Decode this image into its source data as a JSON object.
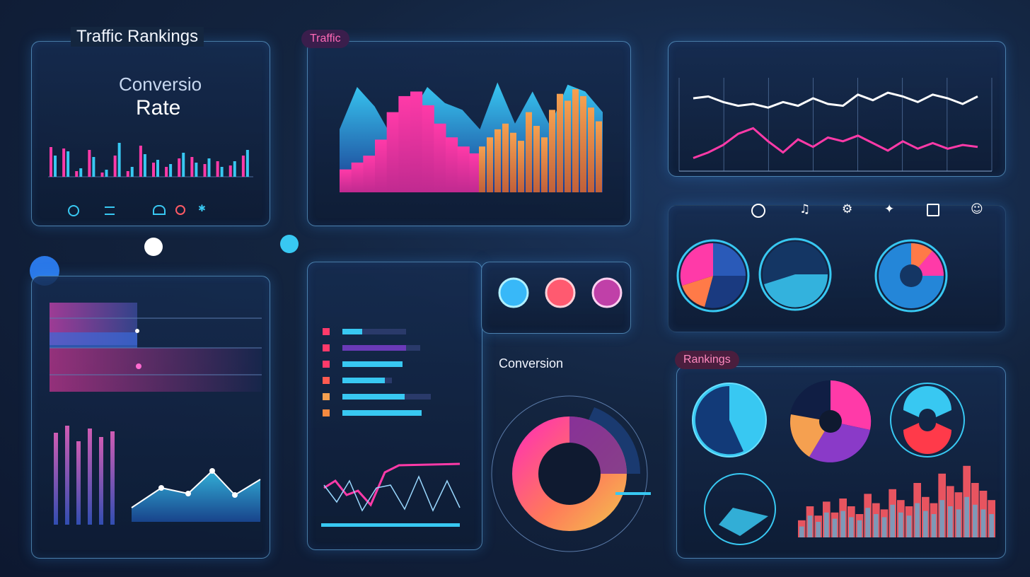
{
  "titles": {
    "traffic_rankings": "Traffic Rankings",
    "traffic_pill": "Traffic",
    "conversion_line1": "Conversio",
    "conversion_line2": "Rate",
    "conversion_center": "Conversion",
    "rankings_pill": "Rankings"
  },
  "colors": {
    "background": "#13243f",
    "panel_border": "#6ec8ff",
    "cyan": "#38c8f2",
    "pink": "#ff3aa8",
    "orange": "#f5a050",
    "coral": "#ff5a64",
    "purple": "#c048d8",
    "white": "#ffffff"
  },
  "icons": [
    "circle-icon",
    "music-icon",
    "robot-icon",
    "compass-icon",
    "calendar-icon",
    "user-icon"
  ],
  "chart_data": [
    {
      "type": "bar",
      "panel": "conversion-rate-bars",
      "series": [
        {
          "color": "#ff3aa8",
          "values": [
            42,
            40,
            8,
            38,
            6,
            30,
            8,
            44,
            20,
            14,
            26,
            28,
            18,
            22,
            16,
            30
          ]
        },
        {
          "color": "#38c8f2",
          "values": [
            30,
            36,
            12,
            28,
            10,
            48,
            14,
            32,
            24,
            18,
            34,
            20,
            26,
            14,
            22,
            38
          ]
        }
      ]
    },
    {
      "type": "area",
      "panel": "traffic-main",
      "series": [
        {
          "color": "#38c8f2",
          "values": [
            55,
            92,
            75,
            48,
            66,
            92,
            78,
            72,
            55,
            96,
            60,
            88,
            58,
            94,
            88,
            70
          ]
        },
        {
          "color": "#ff3aa8",
          "values": [
            20,
            26,
            32,
            46,
            70,
            84,
            88,
            76,
            60,
            48,
            40,
            34
          ]
        },
        {
          "color": "#f5a050",
          "values": [
            40,
            48,
            55,
            60,
            52,
            45,
            70,
            58,
            48,
            72,
            86,
            80,
            90,
            84,
            74,
            62
          ]
        }
      ]
    },
    {
      "type": "line",
      "panel": "top-right-lines",
      "series": [
        {
          "color": "#ffffff",
          "values": [
            78,
            80,
            74,
            70,
            72,
            68,
            74,
            70,
            78,
            72,
            70,
            82,
            76,
            84,
            80,
            74,
            82,
            78,
            72,
            80
          ]
        },
        {
          "color": "#ff3aa8",
          "values": [
            14,
            20,
            28,
            40,
            46,
            32,
            20,
            34,
            26,
            36,
            32,
            38,
            30,
            22,
            32,
            24,
            30,
            24,
            28,
            26
          ]
        }
      ]
    },
    {
      "type": "bar",
      "panel": "horizontal-bars",
      "series": [
        {
          "color": "#38c8f2",
          "values": [
            28,
            90,
            85,
            60,
            88,
            112
          ]
        },
        {
          "color": "#2a3a6a",
          "values": [
            90,
            110,
            85,
            70,
            125,
            112
          ]
        }
      ]
    },
    {
      "type": "pie",
      "panel": "center-donut",
      "values": [
        40,
        35,
        25
      ]
    },
    {
      "type": "bar",
      "panel": "rankings-bars",
      "series": [
        {
          "color": "#ff5a64",
          "values": [
            22,
            40,
            28,
            46,
            32,
            50,
            40,
            30,
            56,
            44,
            36,
            62,
            48,
            40,
            70,
            52,
            44,
            82,
            66,
            58,
            92,
            70,
            60,
            48
          ]
        },
        {
          "color": "#38c8f2",
          "values": [
            14,
            28,
            20,
            32,
            24,
            34,
            26,
            22,
            38,
            30,
            26,
            42,
            32,
            28,
            44,
            34,
            30,
            48,
            40,
            36,
            52,
            42,
            36,
            30
          ]
        }
      ]
    }
  ]
}
